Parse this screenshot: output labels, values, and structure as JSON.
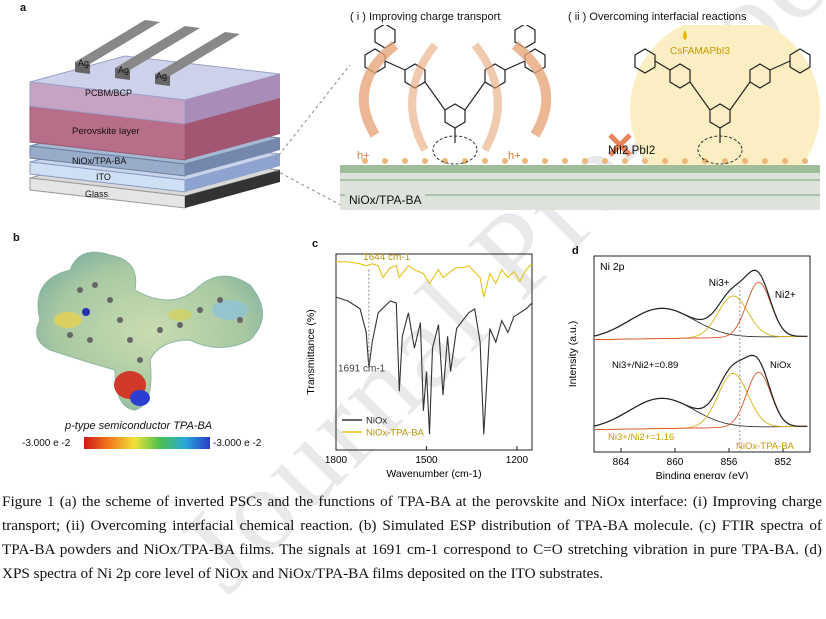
{
  "watermark": "Journal Pre-proof",
  "panel_labels": {
    "a": "a",
    "b": "b",
    "c": "c",
    "d": "d"
  },
  "panel_a": {
    "layers": [
      "Ag",
      "Ag",
      "Ag",
      "PCBM/BCP",
      "Perovskite layer",
      "NiOx/TPA-BA",
      "ITO",
      "Glass"
    ],
    "header_i": "( i ) Improving charge transport",
    "header_ii": "( ii ) Overcoming interfacial reactions",
    "reagent": "CsFAMAPbI3",
    "hplus_left": "h+",
    "hplus_right": "h+",
    "byproduct": "NiI2 PbI2",
    "substrate_label": "NiOx/TPA-BA"
  },
  "panel_b": {
    "caption": "p-type semiconductor  TPA-BA",
    "scale_min": "-3.000 e -2",
    "scale_max": "-3.000 e -2"
  },
  "chart_data": [
    {
      "type": "line",
      "panel": "c",
      "xlabel": "Wavenumber (cm-1)",
      "ylabel": "Transmittance (%)",
      "x_ticks": [
        "1800",
        "1500",
        "1200"
      ],
      "xlim": [
        1800,
        1150
      ],
      "annotations": [
        "1644 cm-1",
        "1691 cm-1"
      ],
      "series": [
        {
          "name": "NiOx",
          "color": "#333333",
          "x": [
            1800,
            1760,
            1720,
            1700,
            1691,
            1680,
            1660,
            1620,
            1600,
            1590,
            1580,
            1560,
            1540,
            1520,
            1510,
            1500,
            1490,
            1480,
            1460,
            1445,
            1430,
            1420,
            1400,
            1380,
            1360,
            1340,
            1322,
            1310,
            1290,
            1270,
            1250,
            1230,
            1210,
            1190,
            1170,
            1150
          ],
          "y": [
            78,
            76,
            72,
            60,
            42,
            55,
            70,
            76,
            75,
            30,
            58,
            70,
            52,
            65,
            20,
            40,
            8,
            52,
            64,
            28,
            58,
            40,
            62,
            66,
            70,
            72,
            55,
            8,
            62,
            55,
            66,
            60,
            68,
            70,
            72,
            75
          ]
        },
        {
          "name": "NiOx-TPA-BA",
          "color": "#e6c21a",
          "x": [
            1800,
            1760,
            1720,
            1700,
            1680,
            1660,
            1644,
            1620,
            1600,
            1590,
            1560,
            1540,
            1510,
            1490,
            1460,
            1445,
            1420,
            1400,
            1380,
            1360,
            1322,
            1310,
            1290,
            1270,
            1250,
            1230,
            1210,
            1190,
            1170,
            1150
          ],
          "y": [
            96,
            96,
            95,
            94,
            95,
            94,
            88,
            93,
            94,
            88,
            94,
            92,
            90,
            85,
            92,
            88,
            91,
            93,
            93,
            94,
            88,
            78,
            90,
            85,
            92,
            88,
            91,
            86,
            92,
            95
          ]
        }
      ]
    },
    {
      "type": "line",
      "panel": "d",
      "title": "Ni 2p",
      "xlabel": "Binding energy (eV)",
      "ylabel": "Intensity (a.u.)",
      "x_ticks": [
        "864",
        "860",
        "856",
        "852"
      ],
      "xlim": [
        866,
        850
      ],
      "peak_labels": [
        "Ni3+",
        "Ni2+"
      ],
      "annotations": [
        "Ni3+/Ni2+=0.89",
        "NiOx",
        "Ni3+/Ni2+=1.16",
        "NiOx-TPA-BA"
      ],
      "series": [
        {
          "name": "NiOx",
          "color": "#333333",
          "ratio": 0.89
        },
        {
          "name": "NiOx-TPA-BA",
          "color": "#333333",
          "ratio": 1.16
        }
      ]
    }
  ],
  "caption_text": "Figure 1  (a) the scheme of inverted PSCs and the functions of TPA-BA at the perovskite and NiOx interface: (i) Improving charge transport; (ii) Overcoming interfacial chemical reaction. (b) Simulated ESP distribution of TPA-BA molecule. (c) FTIR spectra of TPA-BA powders and NiOx/TPA-BA films. The signals at 1691 cm-1 correspond to C=O stretching vibration in pure TPA-BA. (d) XPS spectra of Ni 2p core level of NiOx and NiOx/TPA-BA films deposited on the ITO substrates."
}
